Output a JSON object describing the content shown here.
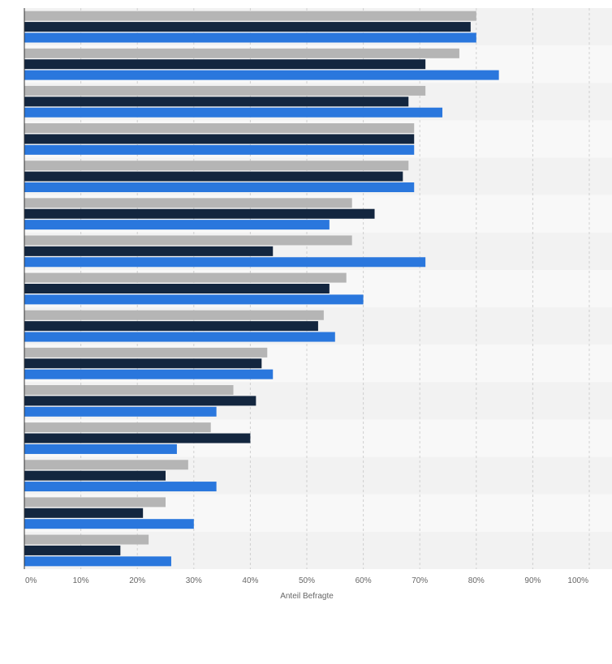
{
  "chart_data": {
    "type": "bar",
    "orientation": "horizontal",
    "title": "",
    "xlabel": "Anteil Befragte",
    "ylabel": "",
    "xlim": [
      0,
      100
    ],
    "x_ticks": [
      0,
      10,
      20,
      30,
      40,
      50,
      60,
      70,
      80,
      90,
      100
    ],
    "x_tick_labels": [
      "0%",
      "10%",
      "20%",
      "30%",
      "40%",
      "50%",
      "60%",
      "70%",
      "80%",
      "90%",
      "100%"
    ],
    "grid": true,
    "legend": "none",
    "category_count": 15,
    "series": [
      {
        "color": "#b5b5b5",
        "values": [
          80,
          77,
          71,
          69,
          68,
          58,
          58,
          57,
          53,
          43,
          37,
          33,
          29,
          25,
          22
        ]
      },
      {
        "color": "#13263f",
        "values": [
          79,
          71,
          68,
          69,
          67,
          62,
          44,
          54,
          52,
          42,
          41,
          40,
          25,
          21,
          17
        ]
      },
      {
        "color": "#2a77dd",
        "values": [
          80,
          84,
          74,
          69,
          69,
          54,
          71,
          60,
          55,
          44,
          34,
          27,
          34,
          30,
          26
        ]
      }
    ]
  }
}
